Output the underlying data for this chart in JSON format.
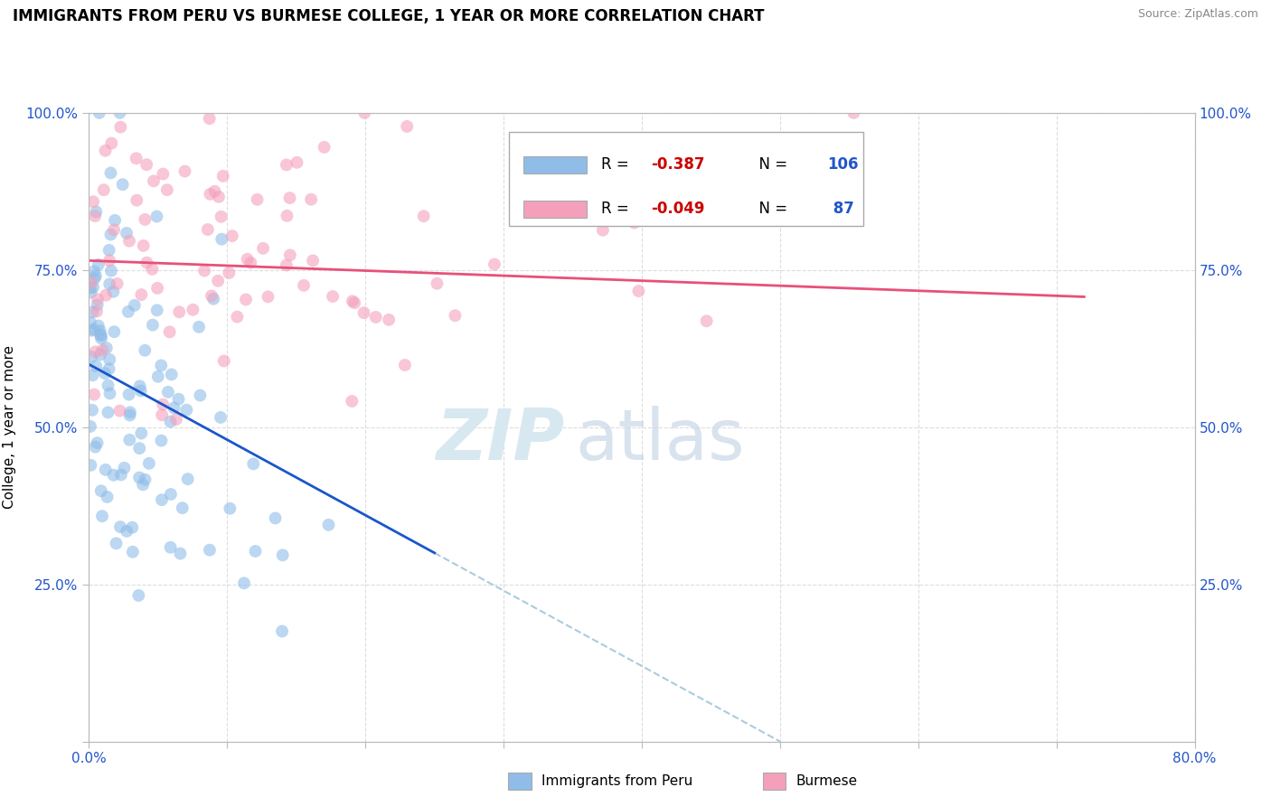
{
  "title": "IMMIGRANTS FROM PERU VS BURMESE COLLEGE, 1 YEAR OR MORE CORRELATION CHART",
  "source_text": "Source: ZipAtlas.com",
  "ylabel": "College, 1 year or more",
  "xlim": [
    0.0,
    0.8
  ],
  "ylim": [
    0.0,
    1.0
  ],
  "yticks": [
    0.0,
    0.25,
    0.5,
    0.75,
    1.0
  ],
  "xtick_positions": [
    0.0,
    0.1,
    0.2,
    0.3,
    0.4,
    0.5,
    0.6,
    0.7,
    0.8
  ],
  "blue_color": "#8FBDE8",
  "pink_color": "#F4A0BB",
  "blue_line_color": "#1A56CC",
  "pink_line_color": "#E8507A",
  "dashed_line_color": "#AACCDD",
  "watermark_zip": "ZIP",
  "watermark_atlas": "atlas",
  "blue_r": -0.387,
  "blue_n": 106,
  "pink_r": -0.049,
  "pink_n": 87,
  "seed": 42,
  "legend_r1_val": "-0.387",
  "legend_n1_val": "106",
  "legend_r2_val": "-0.049",
  "legend_n2_val": " 87",
  "r_color": "#CC0000",
  "n_color": "#2255CC",
  "label_blue": "Immigrants from Peru",
  "label_pink": "Burmese"
}
